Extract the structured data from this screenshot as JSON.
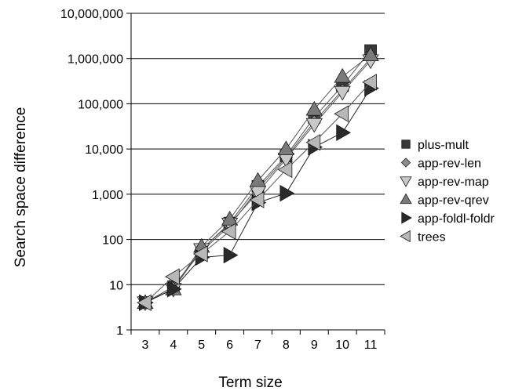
{
  "chart_data": {
    "type": "line",
    "title": "",
    "xlabel": "Term size",
    "ylabel": "Search space difference",
    "x": [
      3,
      4,
      5,
      6,
      7,
      8,
      9,
      10,
      11
    ],
    "y_scale": "log",
    "ylim": [
      1,
      10000000
    ],
    "y_ticks": [
      1,
      10,
      100,
      1000,
      10000,
      100000,
      1000000,
      10000000
    ],
    "y_tick_labels": [
      "1",
      "10",
      "100",
      "1,000",
      "10,000",
      "100,000",
      "1,000,000",
      "10,000,000"
    ],
    "grid": "horizontal",
    "legend_position": "right",
    "series": [
      {
        "name": "plus-mult",
        "marker": "square",
        "fill": "#3a3a3a",
        "values": [
          4,
          9,
          60,
          230,
          1500,
          7000,
          50000,
          250000,
          1500000
        ]
      },
      {
        "name": "app-rev-len",
        "marker": "diamond",
        "fill": "#8c8c8c",
        "values": [
          4,
          9,
          55,
          200,
          1300,
          6500,
          40000,
          200000,
          1000000
        ]
      },
      {
        "name": "app-rev-map",
        "marker": "triangle-down",
        "fill": "#c8c8c8",
        "values": [
          4,
          8,
          60,
          220,
          1100,
          6000,
          35000,
          180000,
          900000
        ]
      },
      {
        "name": "app-rev-qrev",
        "marker": "triangle-up",
        "fill": "#7a7a7a",
        "values": [
          4,
          8,
          70,
          280,
          2000,
          10000,
          75000,
          400000,
          1200000
        ]
      },
      {
        "name": "app-foldl-foldr",
        "marker": "triangle-right",
        "fill": "#2a2a2a",
        "values": [
          4,
          8,
          40,
          45,
          650,
          1050,
          11000,
          23000,
          220000
        ]
      },
      {
        "name": "trees",
        "marker": "triangle-left",
        "fill": "#b8b8b8",
        "values": [
          4,
          15,
          48,
          150,
          750,
          3500,
          14000,
          60000,
          300000
        ]
      }
    ]
  }
}
